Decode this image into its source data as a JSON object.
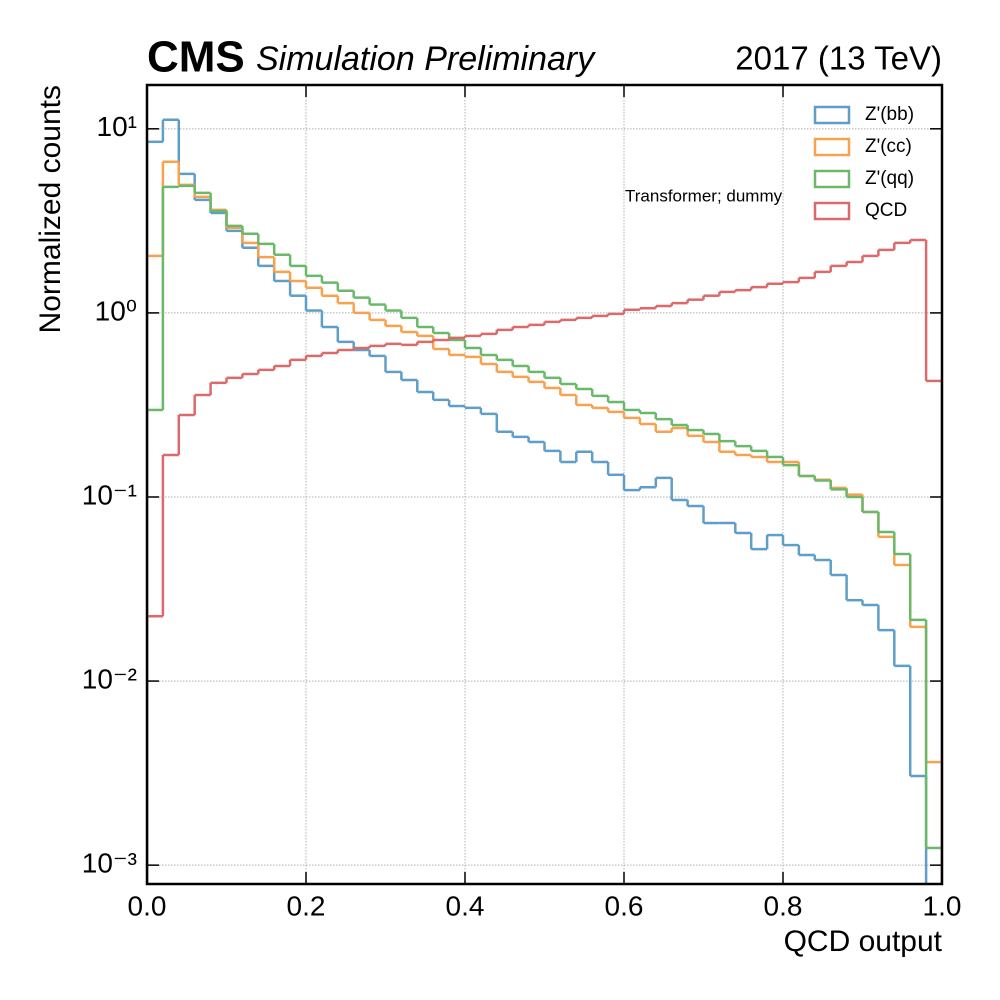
{
  "chart_data": {
    "type": "histogram",
    "title": "CMS",
    "subtitle": "Simulation Preliminary",
    "annotation_right": "2017 (13 TeV)",
    "annotation": "Transformer; dummy",
    "xlabel": "QCD output",
    "ylabel": "Normalized counts",
    "log_y": true,
    "grid": true,
    "legend": "upper right",
    "bins": [
      0,
      0.02,
      0.04,
      0.06,
      0.08,
      0.1,
      0.12,
      0.14,
      0.16,
      0.18,
      0.2,
      0.22,
      0.24,
      0.26,
      0.28,
      0.3,
      0.32,
      0.34,
      0.36,
      0.38,
      0.4,
      0.42,
      0.44,
      0.46,
      0.48,
      0.5,
      0.52,
      0.54,
      0.56,
      0.58,
      0.6,
      0.62,
      0.64,
      0.66,
      0.68,
      0.7,
      0.72,
      0.74,
      0.76,
      0.78,
      0.8,
      0.82,
      0.84,
      0.86,
      0.88,
      0.9,
      0.92,
      0.94,
      0.96,
      0.98,
      1
    ],
    "series": [
      {
        "name": "Z'(bb)",
        "color": "#5f9ec8",
        "values": [
          8.5,
          11.2,
          5.69,
          4.11,
          3.49,
          2.79,
          2.26,
          1.8,
          1.49,
          1.24,
          1.03,
          0.839,
          0.696,
          0.629,
          0.584,
          0.478,
          0.432,
          0.372,
          0.337,
          0.312,
          0.305,
          0.283,
          0.226,
          0.212,
          0.199,
          0.178,
          0.155,
          0.176,
          0.155,
          0.132,
          0.109,
          0.113,
          0.127,
          0.0963,
          0.0893,
          0.0722,
          0.0722,
          0.0637,
          0.0521,
          0.0621,
          0.0548,
          0.0484,
          0.0455,
          0.0377,
          0.0275,
          0.0259,
          0.0189,
          0.0121,
          0.00305,
          0.0005
        ]
      },
      {
        "name": "Z'(cc)",
        "color": "#f8a14e",
        "values": [
          2.04,
          6.62,
          4.96,
          4.27,
          3.63,
          2.9,
          2.4,
          2.01,
          1.67,
          1.49,
          1.37,
          1.24,
          1.13,
          1.0,
          0.916,
          0.85,
          0.788,
          0.75,
          0.637,
          0.591,
          0.577,
          0.528,
          0.478,
          0.449,
          0.422,
          0.391,
          0.358,
          0.316,
          0.305,
          0.29,
          0.269,
          0.249,
          0.226,
          0.237,
          0.215,
          0.199,
          0.176,
          0.169,
          0.165,
          0.155,
          0.155,
          0.13,
          0.124,
          0.112,
          0.103,
          0.0829,
          0.0607,
          0.0427,
          0.0197,
          0.00363
        ]
      },
      {
        "name": "Z'(qq)",
        "color": "#6ab96a",
        "values": [
          0.297,
          4.84,
          4.9,
          4.49,
          3.58,
          2.97,
          2.69,
          2.37,
          2.07,
          1.8,
          1.59,
          1.46,
          1.32,
          1.21,
          1.11,
          1.03,
          0.939,
          0.839,
          0.778,
          0.713,
          0.645,
          0.591,
          0.556,
          0.515,
          0.478,
          0.444,
          0.411,
          0.386,
          0.354,
          0.328,
          0.297,
          0.286,
          0.265,
          0.246,
          0.231,
          0.22,
          0.201,
          0.189,
          0.178,
          0.165,
          0.149,
          0.13,
          0.123,
          0.11,
          0.1,
          0.0829,
          0.0645,
          0.049,
          0.0215,
          0.00124
        ]
      },
      {
        "name": "QCD",
        "color": "#dc6a6a",
        "values": [
          0.0225,
          0.169,
          0.279,
          0.358,
          0.417,
          0.444,
          0.466,
          0.49,
          0.515,
          0.556,
          0.584,
          0.606,
          0.629,
          0.645,
          0.662,
          0.679,
          0.67,
          0.696,
          0.713,
          0.732,
          0.75,
          0.769,
          0.809,
          0.839,
          0.861,
          0.894,
          0.916,
          0.939,
          0.963,
          0.988,
          1.04,
          1.06,
          1.09,
          1.13,
          1.18,
          1.24,
          1.3,
          1.33,
          1.38,
          1.44,
          1.47,
          1.55,
          1.67,
          1.8,
          1.89,
          2.04,
          2.2,
          2.4,
          2.49,
          0.427
        ]
      }
    ],
    "xlim": [
      0,
      1
    ],
    "xticks": [
      {
        "value": 0,
        "label": "0.0"
      },
      0.2,
      0.4,
      0.6,
      0.8,
      {
        "value": 1,
        "label": "1.0"
      }
    ],
    "ylim": [
      0.00079,
      17.3
    ],
    "yticks": [
      {
        "value": 0.001,
        "label": "10⁻³"
      },
      {
        "value": 0.01,
        "label": "10⁻²"
      },
      {
        "value": 0.1,
        "label": "10⁻¹"
      },
      {
        "value": 1,
        "label": "10⁰"
      },
      {
        "value": 10,
        "label": "10¹"
      }
    ]
  }
}
